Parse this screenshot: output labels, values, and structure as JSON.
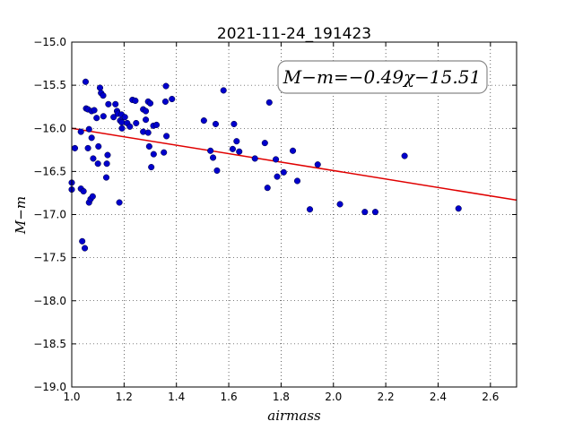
{
  "chart_data": {
    "type": "scatter",
    "title": "2021-11-24_191423",
    "xlabel": "airmass",
    "ylabel": "M−m",
    "xlim": [
      1.0,
      2.7
    ],
    "ylim": [
      -19.0,
      -15.0
    ],
    "y_inverted": true,
    "grid": true,
    "xticks": [
      "1.0",
      "1.2",
      "1.4",
      "1.6",
      "1.8",
      "2.0",
      "2.2",
      "2.4",
      "2.6"
    ],
    "yticks": [
      "−15.0",
      "−15.5",
      "−16.0",
      "−16.5",
      "−17.0",
      "−17.5",
      "−18.0",
      "−18.5",
      "−19.0"
    ],
    "annotation": "M−m=−0.49χ−15.51",
    "fit": {
      "slope": -0.49,
      "intercept": -15.51,
      "color": "#e00000"
    },
    "marker_color": "#0000cc",
    "points": [
      {
        "x": 1.0,
        "y": -16.63
      },
      {
        "x": 1.0,
        "y": -16.71
      },
      {
        "x": 1.012,
        "y": -16.23
      },
      {
        "x": 1.035,
        "y": -16.04
      },
      {
        "x": 1.035,
        "y": -16.7
      },
      {
        "x": 1.04,
        "y": -17.31
      },
      {
        "x": 1.045,
        "y": -16.73
      },
      {
        "x": 1.05,
        "y": -17.39
      },
      {
        "x": 1.053,
        "y": -15.46
      },
      {
        "x": 1.055,
        "y": -15.77
      },
      {
        "x": 1.062,
        "y": -15.78
      },
      {
        "x": 1.062,
        "y": -16.23
      },
      {
        "x": 1.066,
        "y": -16.01
      },
      {
        "x": 1.066,
        "y": -16.86
      },
      {
        "x": 1.072,
        "y": -16.82
      },
      {
        "x": 1.076,
        "y": -15.8
      },
      {
        "x": 1.076,
        "y": -16.11
      },
      {
        "x": 1.08,
        "y": -16.79
      },
      {
        "x": 1.082,
        "y": -16.35
      },
      {
        "x": 1.086,
        "y": -15.79
      },
      {
        "x": 1.095,
        "y": -15.88
      },
      {
        "x": 1.1,
        "y": -16.41
      },
      {
        "x": 1.102,
        "y": -16.21
      },
      {
        "x": 1.108,
        "y": -15.53
      },
      {
        "x": 1.112,
        "y": -15.59
      },
      {
        "x": 1.12,
        "y": -15.62
      },
      {
        "x": 1.121,
        "y": -15.86
      },
      {
        "x": 1.132,
        "y": -16.57
      },
      {
        "x": 1.134,
        "y": -16.41
      },
      {
        "x": 1.137,
        "y": -16.31
      },
      {
        "x": 1.14,
        "y": -15.72
      },
      {
        "x": 1.16,
        "y": -15.87
      },
      {
        "x": 1.167,
        "y": -15.72
      },
      {
        "x": 1.173,
        "y": -15.8
      },
      {
        "x": 1.176,
        "y": -15.83
      },
      {
        "x": 1.182,
        "y": -16.86
      },
      {
        "x": 1.185,
        "y": -15.91
      },
      {
        "x": 1.19,
        "y": -15.84
      },
      {
        "x": 1.191,
        "y": -15.93
      },
      {
        "x": 1.192,
        "y": -16.0
      },
      {
        "x": 1.203,
        "y": -15.87
      },
      {
        "x": 1.212,
        "y": -15.94
      },
      {
        "x": 1.222,
        "y": -15.98
      },
      {
        "x": 1.232,
        "y": -15.67
      },
      {
        "x": 1.243,
        "y": -15.68
      },
      {
        "x": 1.246,
        "y": -15.94
      },
      {
        "x": 1.273,
        "y": -15.78
      },
      {
        "x": 1.273,
        "y": -16.04
      },
      {
        "x": 1.283,
        "y": -15.8
      },
      {
        "x": 1.283,
        "y": -15.9
      },
      {
        "x": 1.292,
        "y": -15.69
      },
      {
        "x": 1.292,
        "y": -16.05
      },
      {
        "x": 1.296,
        "y": -16.21
      },
      {
        "x": 1.3,
        "y": -15.71
      },
      {
        "x": 1.304,
        "y": -16.45
      },
      {
        "x": 1.312,
        "y": -15.97
      },
      {
        "x": 1.313,
        "y": -16.3
      },
      {
        "x": 1.324,
        "y": -15.96
      },
      {
        "x": 1.352,
        "y": -16.28
      },
      {
        "x": 1.358,
        "y": -15.69
      },
      {
        "x": 1.36,
        "y": -15.51
      },
      {
        "x": 1.362,
        "y": -16.09
      },
      {
        "x": 1.383,
        "y": -15.66
      },
      {
        "x": 1.505,
        "y": -15.91
      },
      {
        "x": 1.53,
        "y": -16.26
      },
      {
        "x": 1.54,
        "y": -16.34
      },
      {
        "x": 1.55,
        "y": -15.95
      },
      {
        "x": 1.555,
        "y": -16.49
      },
      {
        "x": 1.58,
        "y": -15.56
      },
      {
        "x": 1.615,
        "y": -16.24
      },
      {
        "x": 1.62,
        "y": -15.95
      },
      {
        "x": 1.63,
        "y": -16.15
      },
      {
        "x": 1.64,
        "y": -16.27
      },
      {
        "x": 1.7,
        "y": -16.35
      },
      {
        "x": 1.738,
        "y": -16.17
      },
      {
        "x": 1.748,
        "y": -16.69
      },
      {
        "x": 1.755,
        "y": -15.7
      },
      {
        "x": 1.78,
        "y": -16.36
      },
      {
        "x": 1.785,
        "y": -16.56
      },
      {
        "x": 1.81,
        "y": -16.51
      },
      {
        "x": 1.845,
        "y": -16.26
      },
      {
        "x": 1.862,
        "y": -16.61
      },
      {
        "x": 1.91,
        "y": -16.94
      },
      {
        "x": 1.94,
        "y": -16.42
      },
      {
        "x": 2.025,
        "y": -16.88
      },
      {
        "x": 2.12,
        "y": -16.97
      },
      {
        "x": 2.16,
        "y": -16.97
      },
      {
        "x": 2.272,
        "y": -16.32
      },
      {
        "x": 2.478,
        "y": -16.93
      }
    ]
  }
}
